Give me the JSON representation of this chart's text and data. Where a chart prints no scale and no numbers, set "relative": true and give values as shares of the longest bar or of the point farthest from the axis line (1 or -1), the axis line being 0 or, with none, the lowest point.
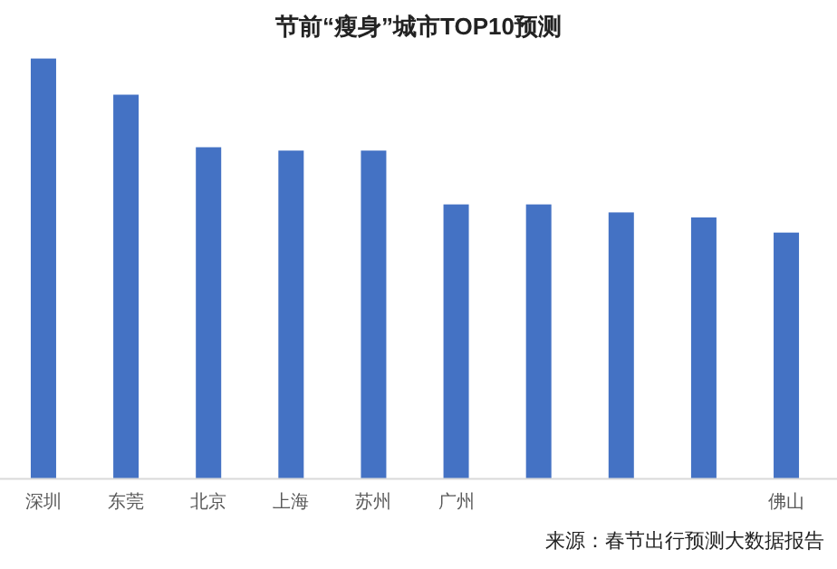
{
  "chart_data": {
    "type": "bar",
    "title": "节前“瘦身”城市TOP10预测",
    "categories": [
      "深圳",
      "东莞",
      "北京",
      "上海",
      "苏州",
      "广州",
      null,
      null,
      null,
      "佛山"
    ],
    "values": [
      1,
      0.914,
      0.789,
      0.781,
      0.781,
      0.653,
      0.653,
      0.634,
      0.622,
      0.586
    ],
    "color": "#4472c4",
    "relative": true,
    "annotations": [
      "来源：春节出行预测大数据报告"
    ]
  }
}
